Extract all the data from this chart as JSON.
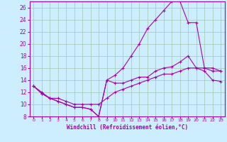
{
  "background_color": "#cceeff",
  "grid_color": "#aaccbb",
  "line_color": "#aa00aa",
  "xlabel": "Windchill (Refroidissement éolien,°C)",
  "xlabel_fontsize": 5.5,
  "xtick_fontsize": 4.5,
  "ytick_fontsize": 5.5,
  "xlim": [
    -0.5,
    23.5
  ],
  "ylim": [
    8,
    27
  ],
  "yticks": [
    8,
    10,
    12,
    14,
    16,
    18,
    20,
    22,
    24,
    26
  ],
  "xticks": [
    0,
    1,
    2,
    3,
    4,
    5,
    6,
    7,
    8,
    9,
    10,
    11,
    12,
    13,
    14,
    15,
    16,
    17,
    18,
    19,
    20,
    21,
    22,
    23
  ],
  "series": [
    {
      "x": [
        0,
        1,
        2,
        3,
        4,
        5,
        6,
        7,
        8,
        9,
        10,
        11,
        12,
        13,
        14,
        15,
        16,
        17,
        18,
        19,
        20,
        21,
        22,
        23
      ],
      "y": [
        13,
        11.8,
        11,
        10.5,
        10,
        9.5,
        9.5,
        9.2,
        8.0,
        14,
        13.5,
        13.5,
        14,
        14.5,
        14.5,
        15.5,
        16,
        16.2,
        17,
        18,
        16,
        15.5,
        14,
        13.8
      ]
    },
    {
      "x": [
        0,
        1,
        2,
        3,
        4,
        5,
        6,
        7,
        8,
        9,
        10,
        11,
        12,
        13,
        14,
        15,
        16,
        17,
        18,
        19,
        20,
        21,
        22,
        23
      ],
      "y": [
        13,
        11.8,
        11,
        10.5,
        10,
        9.5,
        9.5,
        9.2,
        8.0,
        14,
        14.8,
        16,
        18,
        20,
        22.5,
        24,
        25.5,
        27,
        27,
        23.5,
        23.5,
        16,
        15.5,
        15.5
      ]
    },
    {
      "x": [
        0,
        1,
        2,
        3,
        4,
        5,
        6,
        7,
        8,
        9,
        10,
        11,
        12,
        13,
        14,
        15,
        16,
        17,
        18,
        19,
        20,
        21,
        22,
        23
      ],
      "y": [
        13,
        12,
        11,
        11,
        10.5,
        10,
        10,
        10,
        10,
        11,
        12,
        12.5,
        13,
        13.5,
        14,
        14.5,
        15,
        15,
        15.5,
        16,
        16,
        16,
        16,
        15.5
      ]
    }
  ]
}
